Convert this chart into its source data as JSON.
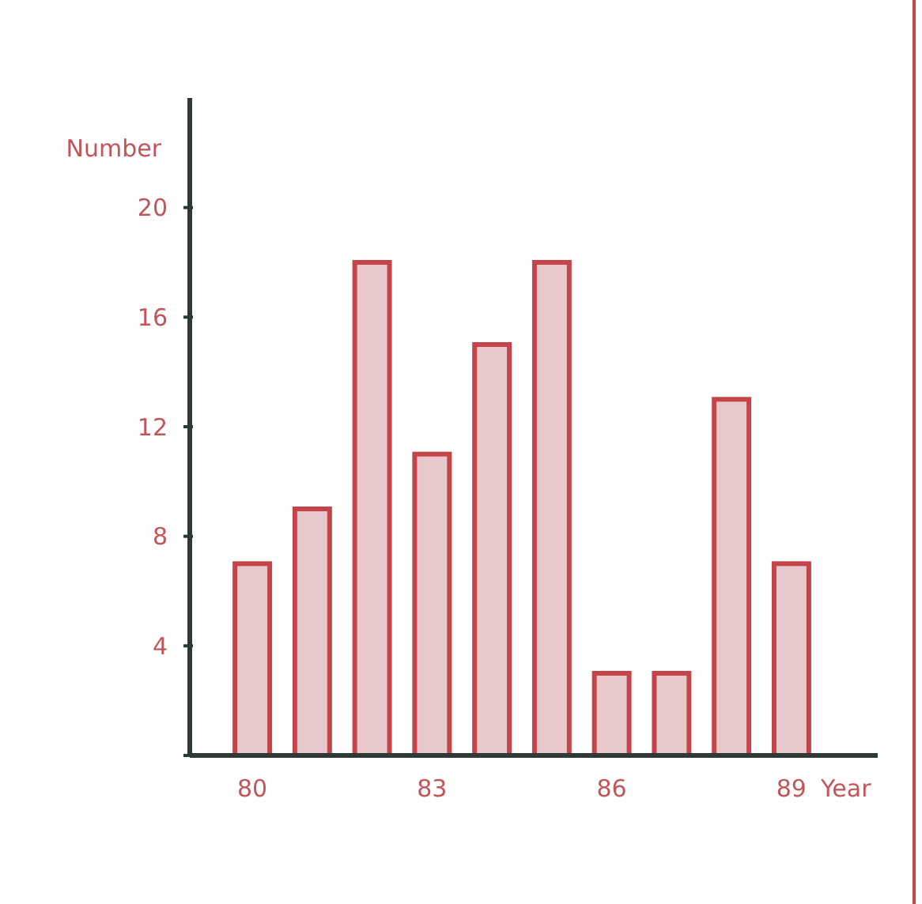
{
  "chart_data": {
    "type": "bar",
    "ylabel": "Number",
    "xlabel": "Year",
    "categories": [
      "80",
      null,
      null,
      "83",
      null,
      null,
      "86",
      null,
      null,
      "89"
    ],
    "values": [
      7,
      9,
      18,
      11,
      15,
      18,
      3,
      3,
      13,
      7
    ],
    "color": "#e8c9cb",
    "ylim": [
      0,
      24
    ],
    "yticks": [
      {
        "value": 0,
        "label": null
      },
      4,
      8,
      12,
      16,
      20
    ],
    "grid": false
  }
}
